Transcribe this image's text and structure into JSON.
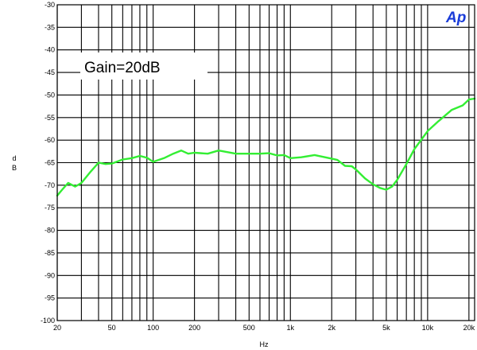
{
  "chart_data": {
    "type": "line",
    "title": "",
    "xlabel": "Hz",
    "ylabel": "d\nB",
    "x_scale": "log",
    "xlim": [
      20,
      22000
    ],
    "ylim": [
      -100,
      -30
    ],
    "grid": true,
    "annotation": "Gain=20dB",
    "logo": "Ap",
    "x_ticks": [
      {
        "value": 20,
        "label": "20"
      },
      {
        "value": 50,
        "label": "50"
      },
      {
        "value": 100,
        "label": "100"
      },
      {
        "value": 200,
        "label": "200"
      },
      {
        "value": 500,
        "label": "500"
      },
      {
        "value": 1000,
        "label": "1k"
      },
      {
        "value": 2000,
        "label": "2k"
      },
      {
        "value": 5000,
        "label": "5k"
      },
      {
        "value": 10000,
        "label": "10k"
      },
      {
        "value": 20000,
        "label": "20k"
      }
    ],
    "x_grid": [
      20,
      30,
      40,
      50,
      60,
      70,
      80,
      90,
      100,
      200,
      300,
      400,
      500,
      600,
      700,
      800,
      900,
      1000,
      2000,
      3000,
      4000,
      5000,
      6000,
      7000,
      8000,
      9000,
      10000,
      20000
    ],
    "y_ticks": [
      {
        "value": -30,
        "label": "-30"
      },
      {
        "value": -35,
        "label": "-35"
      },
      {
        "value": -40,
        "label": "-40"
      },
      {
        "value": -45,
        "label": "-45"
      },
      {
        "value": -50,
        "label": "-50"
      },
      {
        "value": -55,
        "label": "-55"
      },
      {
        "value": -60,
        "label": "-60"
      },
      {
        "value": -65,
        "label": "-65"
      },
      {
        "value": -70,
        "label": "-70"
      },
      {
        "value": -75,
        "label": "-75"
      },
      {
        "value": -80,
        "label": "-80"
      },
      {
        "value": -85,
        "label": "-85"
      },
      {
        "value": -90,
        "label": "-90"
      },
      {
        "value": -95,
        "label": "-95"
      },
      {
        "value": -100,
        "label": "-100"
      }
    ],
    "series": [
      {
        "color": "#33ee33",
        "x": [
          20,
          22,
          24,
          27,
          30,
          35,
          40,
          45,
          50,
          60,
          70,
          80,
          90,
          100,
          120,
          140,
          160,
          180,
          200,
          250,
          300,
          400,
          500,
          600,
          700,
          800,
          900,
          1000,
          1200,
          1500,
          2000,
          2200,
          2500,
          2800,
          3000,
          3500,
          4000,
          4500,
          5000,
          5500,
          6000,
          7000,
          8000,
          10000,
          12000,
          15000,
          18000,
          20000,
          22000
        ],
        "y": [
          -72.3,
          -70.8,
          -69.5,
          -70.3,
          -69.5,
          -67.0,
          -65.0,
          -65.3,
          -65.2,
          -64.3,
          -64.0,
          -63.5,
          -63.9,
          -64.8,
          -64.0,
          -63.0,
          -62.3,
          -63.0,
          -62.8,
          -63.0,
          -62.3,
          -63.0,
          -63.0,
          -63.0,
          -62.9,
          -63.4,
          -63.3,
          -64.0,
          -63.8,
          -63.3,
          -64.1,
          -64.4,
          -65.7,
          -65.8,
          -66.5,
          -68.5,
          -69.8,
          -70.6,
          -71.0,
          -70.3,
          -68.8,
          -65.3,
          -62.0,
          -58.0,
          -55.8,
          -53.3,
          -52.3,
          -51.0,
          -50.8
        ]
      }
    ]
  }
}
